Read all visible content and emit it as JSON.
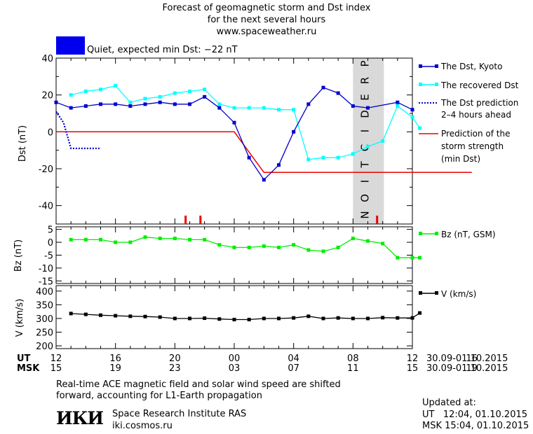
{
  "header": {
    "title_line1": "Forecast of geomagnetic storm and Dst index",
    "title_line2": "for the next several hours",
    "url": "www.spaceweather.ru",
    "status_text": "Quiet, expected min Dst: −22 nT",
    "status_color": "#0000ee"
  },
  "axes": {
    "dst_ylabel": "Dst (nT)",
    "bz_ylabel": "Bz (nT)",
    "v_ylabel": "V (km/s)",
    "ut_label": "UT",
    "msk_label": "MSK",
    "ut_ticks": [
      "12",
      "16",
      "20",
      "00",
      "04",
      "08",
      "12",
      "16"
    ],
    "msk_ticks": [
      "15",
      "19",
      "23",
      "03",
      "07",
      "11",
      "15",
      "19"
    ],
    "ut_date_range": "30.09-01.10.2015",
    "msk_date_range": "30.09-01.10.2015",
    "prediction_label": "PREDICTION"
  },
  "legend": {
    "dst_kyoto": "The Dst, Kyoto",
    "dst_recovered": "The recovered Dst",
    "dst_prediction_l1": "The Dst prediction",
    "dst_prediction_l2": "2–4 hours ahead",
    "strength_l1": "Prediction of the",
    "strength_l2": "storm strength",
    "strength_l3": "(min Dst)",
    "bz": "Bz (nT, GSM)",
    "v": "V (km/s)"
  },
  "footer": {
    "note_line1": "Real-time ACE magnetic field and solar wind speed are shifted",
    "note_line2": "forward, accounting for L1-Earth propagation",
    "logo_text": "ИКИ",
    "institute": "Space Research Institute RAS",
    "site": "iki.cosmos.ru",
    "updated_title": "Updated at:",
    "updated_ut": "UT   12:04, 01.10.2015",
    "updated_msk": "MSK 15:04, 01.10.2015"
  },
  "colors": {
    "dst_kyoto": "#0000cc",
    "dst_recovered": "#00ffff",
    "dst_prediction": "#0000cc",
    "strength": "#ee0000",
    "bz": "#00ee00",
    "v": "#000000",
    "prediction_band": "#d9d9d9"
  },
  "chart_data": [
    {
      "type": "line",
      "title": "Forecast of geomagnetic storm and Dst index",
      "xlabel": "UT",
      "ylabel": "Dst (nT)",
      "x_hours_ut": [
        12,
        36
      ],
      "ylim": [
        -50,
        40
      ],
      "y_ticks": [
        -40,
        -20,
        0,
        20,
        40
      ],
      "prediction_region_hours": [
        12,
        16
      ],
      "series": [
        {
          "name": "The Dst, Kyoto",
          "x": [
            12,
            13,
            14,
            15,
            16,
            17,
            18,
            19,
            20,
            21,
            22,
            23,
            0,
            1,
            2,
            3,
            4,
            5,
            6,
            7,
            8,
            9,
            11,
            12
          ],
          "values": [
            16,
            13,
            14,
            15,
            15,
            14,
            15,
            16,
            15,
            15,
            19,
            13,
            5,
            -14,
            -26,
            -18,
            0,
            15,
            24,
            21,
            14,
            13,
            16,
            12
          ]
        },
        {
          "name": "The recovered Dst",
          "x": [
            13,
            14,
            15,
            16,
            17,
            18,
            19,
            20,
            21,
            22,
            23,
            0,
            1,
            2,
            3,
            4,
            5,
            6,
            7,
            8,
            9,
            10,
            11,
            12,
            12.5
          ],
          "values": [
            20,
            22,
            23,
            25,
            16,
            18,
            19,
            21,
            22,
            23,
            15,
            13,
            13,
            13,
            12,
            12,
            -15,
            -14,
            -14,
            -12,
            -8,
            -5,
            14,
            8,
            2
          ]
        },
        {
          "name": "The Dst prediction 2–4 hours ahead",
          "x": [
            12,
            12.5,
            13,
            14,
            15
          ],
          "values": [
            11,
            5,
            -9,
            -9,
            -9
          ]
        },
        {
          "name": "Prediction of the storm strength (min Dst)",
          "x": [
            12,
            0,
            2,
            16
          ],
          "values": [
            0,
            0,
            -22,
            -22
          ]
        }
      ],
      "storm_markers_ut": [
        20.7,
        21.7,
        9.6
      ]
    },
    {
      "type": "line",
      "ylabel": "Bz (nT)",
      "ylim": [
        -16,
        6
      ],
      "y_ticks": [
        5,
        0,
        -5,
        -10,
        -15
      ],
      "series": [
        {
          "name": "Bz (nT, GSM)",
          "x": [
            13,
            14,
            15,
            16,
            17,
            18,
            19,
            20,
            21,
            22,
            23,
            0,
            1,
            2,
            3,
            4,
            5,
            6,
            7,
            8,
            9,
            10,
            11,
            12,
            12.5
          ],
          "values": [
            1,
            1,
            1,
            0,
            0,
            2,
            1.5,
            1.5,
            1,
            1,
            -1,
            -2,
            -2,
            -1.5,
            -2,
            -1,
            -3,
            -3.5,
            -2,
            1.5,
            0.5,
            -0.5,
            -6,
            -6,
            -6
          ]
        }
      ]
    },
    {
      "type": "line",
      "ylabel": "V (km/s)",
      "ylim": [
        190,
        420
      ],
      "y_ticks": [
        200,
        250,
        300,
        350,
        400
      ],
      "series": [
        {
          "name": "V (km/s)",
          "x": [
            13,
            14,
            15,
            16,
            17,
            18,
            19,
            20,
            21,
            22,
            23,
            0,
            1,
            2,
            3,
            4,
            5,
            6,
            7,
            8,
            9,
            10,
            11,
            12,
            12.5
          ],
          "values": [
            318,
            315,
            312,
            310,
            308,
            307,
            305,
            300,
            300,
            301,
            298,
            296,
            296,
            300,
            300,
            302,
            308,
            300,
            302,
            300,
            300,
            303,
            302,
            302,
            320
          ]
        }
      ]
    }
  ]
}
